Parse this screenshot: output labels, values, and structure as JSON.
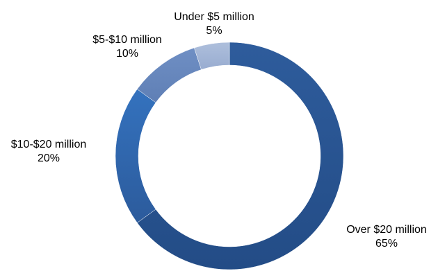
{
  "chart_data": {
    "type": "pie",
    "style": "donut",
    "categories": [
      "Over $20 million",
      "$10-$20 million",
      "$5-$10 million",
      "Under $5 million"
    ],
    "values": [
      65,
      20,
      10,
      5
    ],
    "value_labels": [
      "65%",
      "20%",
      "10%",
      "5%"
    ],
    "colors": [
      "#2a5693",
      "#3064aa",
      "#6a88bd",
      "#a2b5d6"
    ],
    "legend": "none",
    "start": "top",
    "direction": "clockwise"
  }
}
